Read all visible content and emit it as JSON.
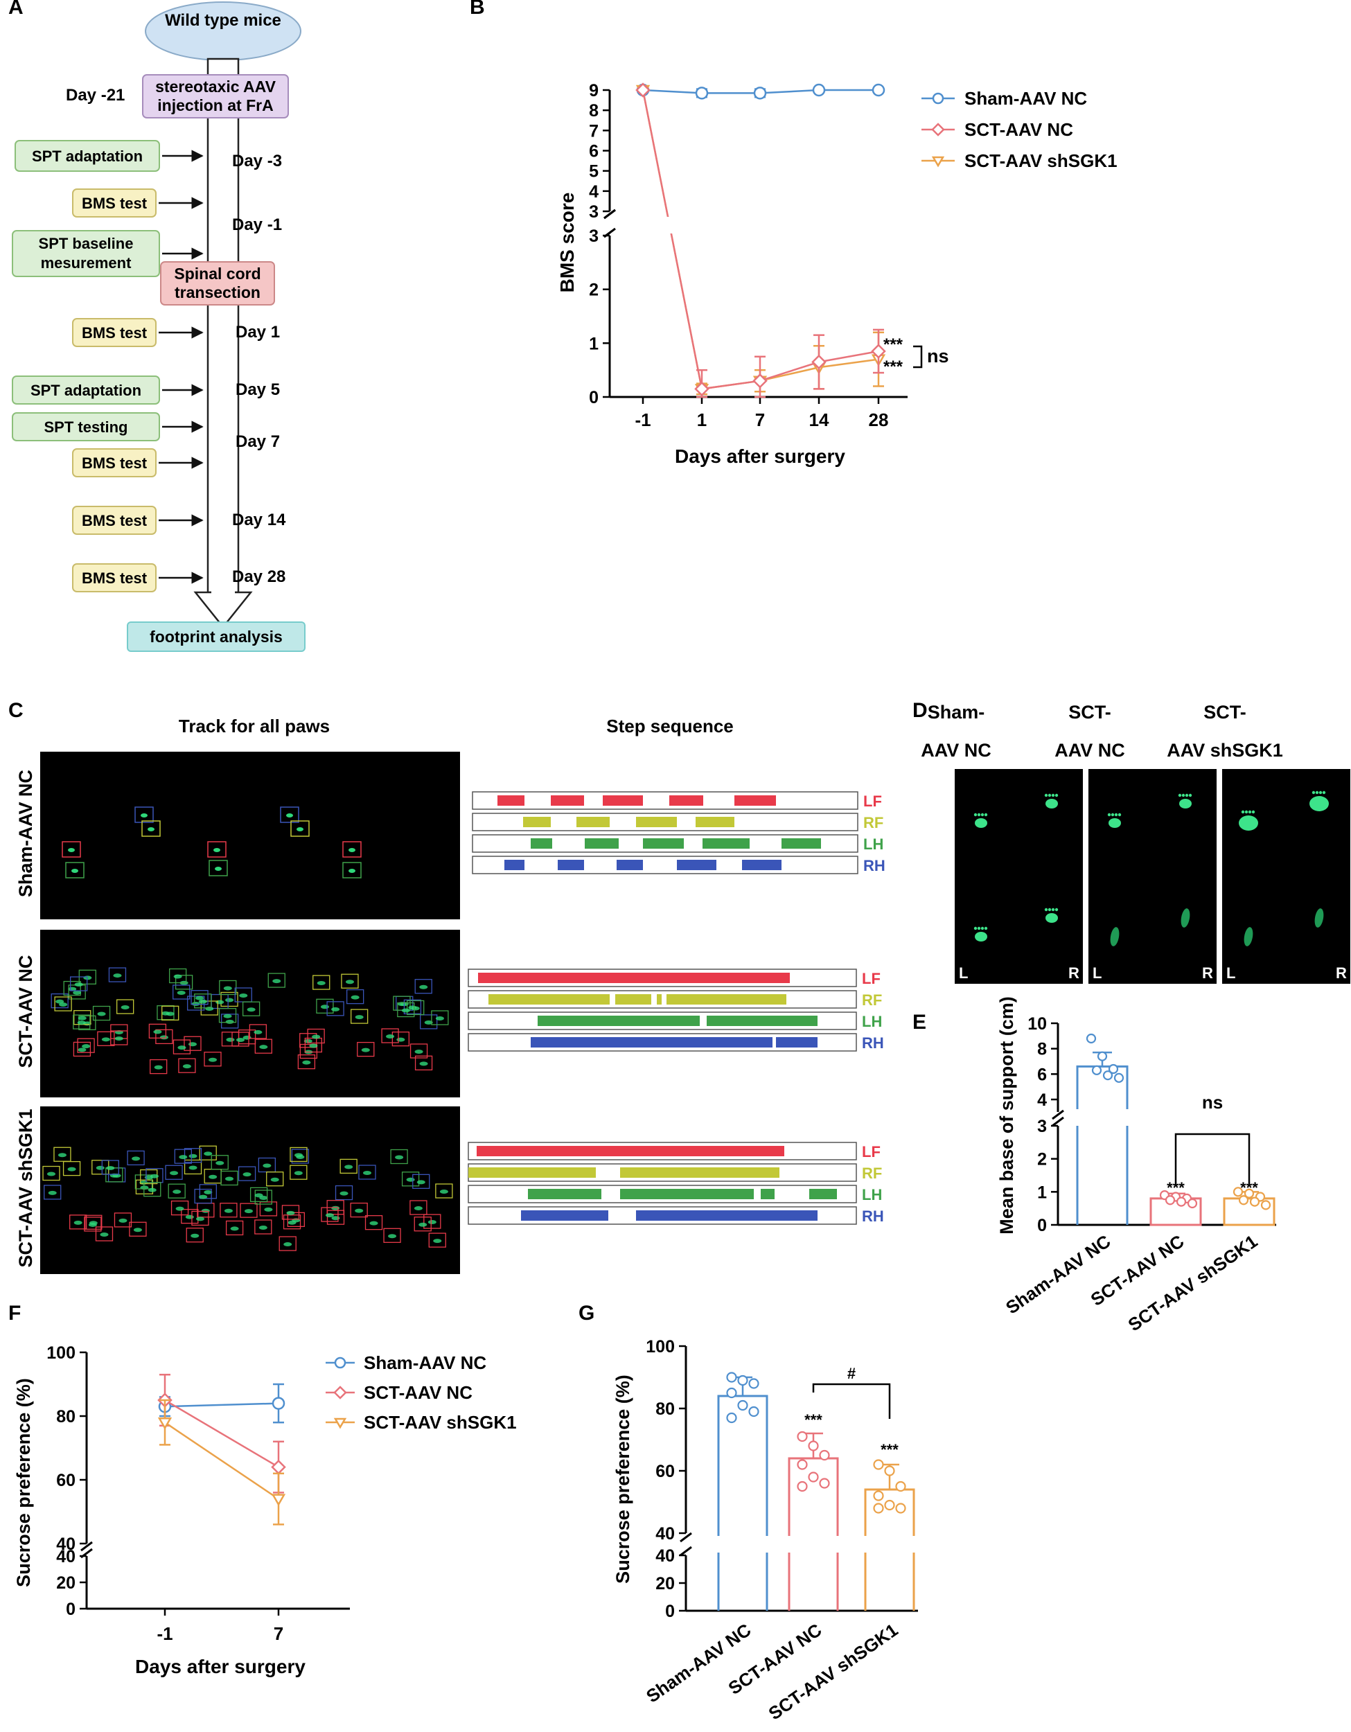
{
  "panels": {
    "A": "A",
    "B": "B",
    "C": "C",
    "D": "D",
    "E": "E",
    "F": "F",
    "G": "G"
  },
  "colors": {
    "sham": "#4f8fce",
    "sct": "#e8737a",
    "shsgk1": "#eba24a",
    "lf": "#e83a4a",
    "rf": "#c2c837",
    "lh": "#3fa24a",
    "rh": "#3a55b8",
    "flow_purple": "#e4d4ef",
    "flow_green": "#dcefd6",
    "flow_yellow": "#f8f1c4",
    "flow_red": "#f5c6c6",
    "flow_teal": "#bfe8e8",
    "flow_blue": "#cfe2f3"
  },
  "panelA": {
    "start": "Wild type mice",
    "injection": [
      "stereotaxic AAV",
      "injection at FrA"
    ],
    "sct": [
      "Spinal cord",
      "transection"
    ],
    "end": "footprint analysis",
    "days": [
      {
        "label": "Day -21"
      },
      {
        "label": "Day -3"
      },
      {
        "label": "Day -1"
      },
      {
        "label": "Day 1"
      },
      {
        "label": "Day 5"
      },
      {
        "label": "Day 7"
      },
      {
        "label": "Day 14"
      },
      {
        "label": "Day 28"
      }
    ],
    "boxes": [
      {
        "text": [
          "SPT adaptation"
        ],
        "kind": "green"
      },
      {
        "text": [
          "BMS test"
        ],
        "kind": "yellow"
      },
      {
        "text": [
          "SPT baseline",
          "mesurement"
        ],
        "kind": "green"
      },
      {
        "text": [
          "BMS test"
        ],
        "kind": "yellow"
      },
      {
        "text": [
          "SPT adaptation"
        ],
        "kind": "green"
      },
      {
        "text": [
          "SPT testing"
        ],
        "kind": "green"
      },
      {
        "text": [
          "BMS test"
        ],
        "kind": "yellow"
      },
      {
        "text": [
          "BMS test"
        ],
        "kind": "yellow"
      },
      {
        "text": [
          "BMS test"
        ],
        "kind": "yellow"
      }
    ]
  },
  "panelC": {
    "track_title": "Track for all paws",
    "step_title": "Step sequence",
    "rows": [
      "Sham-AAV NC",
      "SCT-AAV NC",
      "SCT-AAV shSGK1"
    ],
    "paw_labels": [
      "LF",
      "RF",
      "LH",
      "RH"
    ]
  },
  "panelD": {
    "headers": [
      [
        "Sham-",
        "AAV NC"
      ],
      [
        "SCT-",
        "AAV NC"
      ],
      [
        "SCT-",
        "AAV shSGK1"
      ]
    ],
    "left": "L",
    "right": "R"
  },
  "chart_data": [
    {
      "id": "B",
      "type": "line",
      "xlabel": "Days after surgery",
      "ylabel": "BMS score",
      "categories": [
        "-1",
        "1",
        "7",
        "14",
        "28"
      ],
      "y_broken_axis": {
        "lower": [
          0,
          3
        ],
        "upper": [
          3,
          9
        ]
      },
      "series": [
        {
          "name": "Sham-AAV NC",
          "values": [
            9,
            8.85,
            8.85,
            9,
            9
          ],
          "err": [
            0.05,
            0.2,
            0.2,
            0.05,
            0.05
          ],
          "marker": "circle"
        },
        {
          "name": "SCT-AAV NC",
          "values": [
            9,
            0.15,
            0.3,
            0.65,
            0.85
          ],
          "err": [
            0.05,
            0.35,
            0.45,
            0.5,
            0.4
          ],
          "marker": "diamond"
        },
        {
          "name": "SCT-AAV shSGK1",
          "values": [
            9,
            0.15,
            0.3,
            0.55,
            0.7
          ],
          "err": [
            0.05,
            0.1,
            0.2,
            0.4,
            0.5
          ],
          "marker": "triangle-down"
        }
      ],
      "annotations": [
        "***",
        "***",
        "ns"
      ]
    },
    {
      "id": "E",
      "type": "bar",
      "ylabel": "Mean base of support (cm)",
      "categories": [
        "Sham-AAV NC",
        "SCT-AAV NC",
        "SCT-AAV shSGK1"
      ],
      "values": [
        6.6,
        0.8,
        0.8
      ],
      "err": [
        1.1,
        0.15,
        0.2
      ],
      "points": [
        [
          8.8,
          7.4,
          6.4,
          6.3,
          5.9,
          5.7
        ],
        [
          0.9,
          0.85,
          0.8,
          0.75,
          0.7,
          0.65
        ],
        [
          1.0,
          0.95,
          0.85,
          0.75,
          0.7,
          0.6
        ]
      ],
      "y_broken_axis": {
        "lower": [
          0,
          3
        ],
        "upper": [
          3,
          10
        ]
      },
      "annotations": [
        "***",
        "***",
        "ns"
      ]
    },
    {
      "id": "F",
      "type": "line",
      "xlabel": "Days after surgery",
      "ylabel": "Sucrose preference (%)",
      "categories": [
        "-1",
        "7"
      ],
      "y_broken_axis": {
        "lower": [
          0,
          40
        ],
        "upper": [
          40,
          100
        ]
      },
      "series": [
        {
          "name": "Sham-AAV NC",
          "values": [
            83,
            84
          ],
          "err": [
            3,
            6
          ],
          "marker": "circle"
        },
        {
          "name": "SCT-AAV NC",
          "values": [
            85,
            64
          ],
          "err": [
            8,
            8
          ],
          "marker": "diamond"
        },
        {
          "name": "SCT-AAV shSGK1",
          "values": [
            78,
            54
          ],
          "err": [
            7,
            8
          ],
          "marker": "triangle-down"
        }
      ]
    },
    {
      "id": "G",
      "type": "bar",
      "ylabel": "Sucrose preference (%)",
      "categories": [
        "Sham-AAV NC",
        "SCT-AAV NC",
        "SCT-AAV shSGK1"
      ],
      "values": [
        84,
        64,
        54
      ],
      "err": [
        6,
        8,
        8
      ],
      "points": [
        [
          90,
          89,
          88,
          85,
          81,
          79,
          77
        ],
        [
          71,
          68,
          65,
          62,
          58,
          56,
          55
        ],
        [
          62,
          60,
          55,
          52,
          49,
          48,
          48
        ]
      ],
      "y_broken_axis": {
        "lower": [
          0,
          40
        ],
        "upper": [
          40,
          100
        ]
      },
      "annotations": [
        "***",
        "***",
        "#"
      ]
    }
  ]
}
